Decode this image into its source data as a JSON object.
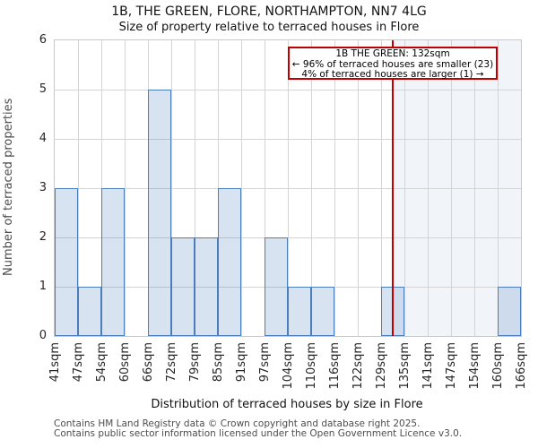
{
  "title": "1B, THE GREEN, FLORE, NORTHAMPTON, NN7 4LG",
  "subtitle": "Size of property relative to terraced houses in Flore",
  "axes": {
    "ylabel": "Number of terraced properties",
    "xlabel": "Distribution of terraced houses by size in Flore"
  },
  "annotation": {
    "line1": "1B THE GREEN: 132sqm",
    "line2": "← 96% of terraced houses are smaller (23)",
    "line3": "4% of terraced houses are larger (1) →"
  },
  "footer": {
    "line1": "Contains HM Land Registry data © Crown copyright and database right 2025.",
    "line2": "Contains public sector information licensed under the Open Government Licence v3.0."
  },
  "chart_data": {
    "type": "bar",
    "title": "1B, THE GREEN, FLORE, NORTHAMPTON, NN7 4LG — Size of property relative to terraced houses in Flore",
    "categories": [
      "41sqm",
      "47sqm",
      "54sqm",
      "60sqm",
      "66sqm",
      "72sqm",
      "79sqm",
      "85sqm",
      "91sqm",
      "97sqm",
      "104sqm",
      "110sqm",
      "116sqm",
      "122sqm",
      "129sqm",
      "135sqm",
      "141sqm",
      "147sqm",
      "154sqm",
      "160sqm",
      "166sqm"
    ],
    "bin_edges_sqm": [
      41,
      47,
      54,
      60,
      66,
      72,
      79,
      85,
      91,
      97,
      104,
      110,
      116,
      122,
      129,
      135,
      141,
      147,
      154,
      160,
      166
    ],
    "values": [
      3,
      1,
      3,
      0,
      5,
      2,
      2,
      3,
      0,
      2,
      1,
      1,
      0,
      0,
      1,
      0,
      0,
      0,
      0,
      1
    ],
    "xlabel": "Distribution of terraced houses by size in Flore",
    "ylabel": "Number of terraced properties",
    "ylim": [
      0,
      6
    ],
    "yticks": [
      0,
      1,
      2,
      3,
      4,
      5,
      6
    ],
    "grid": true,
    "legend": "none",
    "marker": {
      "value_sqm": 132,
      "smaller_pct": 96,
      "smaller_count": 23,
      "larger_pct": 4,
      "larger_count": 1
    }
  },
  "colors": {
    "bar_fill": "rgba(79,129,189,0.22)",
    "bar_border": "#4a7ebb",
    "marker_line": "#bf0000",
    "annotation_border": "#bf0000",
    "shade_fill": "rgba(79,129,189,0.08)",
    "grid": "#d4d4d4",
    "spine": "#c9c9c9"
  }
}
